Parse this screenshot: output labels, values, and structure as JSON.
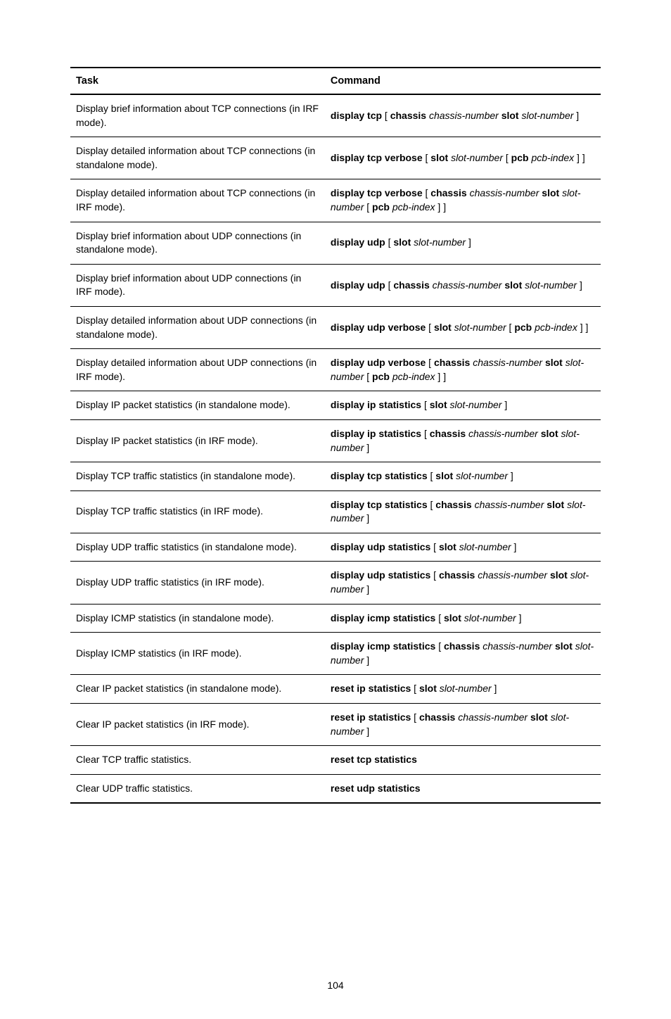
{
  "table": {
    "headers": {
      "task": "Task",
      "command": "Command"
    },
    "rows": [
      {
        "task": "Display brief information about TCP connections (in IRF mode).",
        "command": [
          {
            "t": "display tcp",
            "s": "b"
          },
          {
            "t": " [ ",
            "s": "n"
          },
          {
            "t": "chassis",
            "s": "b"
          },
          {
            "t": " ",
            "s": "n"
          },
          {
            "t": "chassis-number",
            "s": "i"
          },
          {
            "t": " ",
            "s": "n"
          },
          {
            "t": "slot",
            "s": "b"
          },
          {
            "t": " ",
            "s": "n"
          },
          {
            "t": "slot-number",
            "s": "i"
          },
          {
            "t": " ]",
            "s": "n"
          }
        ]
      },
      {
        "task": "Display detailed information about TCP connections (in standalone mode).",
        "command": [
          {
            "t": "display tcp verbose",
            "s": "b"
          },
          {
            "t": " [ ",
            "s": "n"
          },
          {
            "t": "slot",
            "s": "b"
          },
          {
            "t": " ",
            "s": "n"
          },
          {
            "t": "slot-number",
            "s": "i"
          },
          {
            "t": " [ ",
            "s": "n"
          },
          {
            "t": "pcb",
            "s": "b"
          },
          {
            "t": " ",
            "s": "n"
          },
          {
            "t": "pcb-index",
            "s": "i"
          },
          {
            "t": " ] ]",
            "s": "n"
          }
        ]
      },
      {
        "task": "Display detailed information about TCP connections (in IRF mode).",
        "command": [
          {
            "t": "display tcp verbose",
            "s": "b"
          },
          {
            "t": " [ ",
            "s": "n"
          },
          {
            "t": "chassis",
            "s": "b"
          },
          {
            "t": " ",
            "s": "n"
          },
          {
            "t": "chassis-number",
            "s": "i"
          },
          {
            "t": " ",
            "s": "n"
          },
          {
            "t": "slot",
            "s": "b"
          },
          {
            "t": " ",
            "s": "n"
          },
          {
            "t": "slot-number",
            "s": "i"
          },
          {
            "t": " [ ",
            "s": "n"
          },
          {
            "t": "pcb",
            "s": "b"
          },
          {
            "t": " ",
            "s": "n"
          },
          {
            "t": "pcb-index",
            "s": "i"
          },
          {
            "t": " ] ]",
            "s": "n"
          }
        ]
      },
      {
        "task": "Display brief information about UDP connections (in standalone mode).",
        "command": [
          {
            "t": "display udp",
            "s": "b"
          },
          {
            "t": " [ ",
            "s": "n"
          },
          {
            "t": "slot",
            "s": "b"
          },
          {
            "t": " ",
            "s": "n"
          },
          {
            "t": "slot-number",
            "s": "i"
          },
          {
            "t": " ]",
            "s": "n"
          }
        ]
      },
      {
        "task": "Display brief information about UDP connections (in IRF mode).",
        "command": [
          {
            "t": "display udp",
            "s": "b"
          },
          {
            "t": " [ ",
            "s": "n"
          },
          {
            "t": "chassis",
            "s": "b"
          },
          {
            "t": " ",
            "s": "n"
          },
          {
            "t": "chassis-number",
            "s": "i"
          },
          {
            "t": " ",
            "s": "n"
          },
          {
            "t": "slot",
            "s": "b"
          },
          {
            "t": " ",
            "s": "n"
          },
          {
            "t": "slot-number",
            "s": "i"
          },
          {
            "t": " ]",
            "s": "n"
          }
        ]
      },
      {
        "task": "Display detailed information about UDP connections (in standalone mode).",
        "command": [
          {
            "t": "display udp verbose",
            "s": "b"
          },
          {
            "t": " [ ",
            "s": "n"
          },
          {
            "t": "slot",
            "s": "b"
          },
          {
            "t": " ",
            "s": "n"
          },
          {
            "t": "slot-number",
            "s": "i"
          },
          {
            "t": " [ ",
            "s": "n"
          },
          {
            "t": "pcb",
            "s": "b"
          },
          {
            "t": " ",
            "s": "n"
          },
          {
            "t": "pcb-index",
            "s": "i"
          },
          {
            "t": " ] ]",
            "s": "n"
          }
        ]
      },
      {
        "task": "Display detailed information about UDP connections (in IRF mode).",
        "command": [
          {
            "t": "display udp verbose",
            "s": "b"
          },
          {
            "t": " [ ",
            "s": "n"
          },
          {
            "t": "chassis",
            "s": "b"
          },
          {
            "t": " ",
            "s": "n"
          },
          {
            "t": "chassis-number",
            "s": "i"
          },
          {
            "t": " ",
            "s": "n"
          },
          {
            "t": "slot",
            "s": "b"
          },
          {
            "t": " ",
            "s": "n"
          },
          {
            "t": "slot-number",
            "s": "i"
          },
          {
            "t": " [ ",
            "s": "n"
          },
          {
            "t": "pcb",
            "s": "b"
          },
          {
            "t": " ",
            "s": "n"
          },
          {
            "t": "pcb-index",
            "s": "i"
          },
          {
            "t": " ] ]",
            "s": "n"
          }
        ]
      },
      {
        "task": "Display IP packet statistics (in standalone mode).",
        "command": [
          {
            "t": "display ip statistics",
            "s": "b"
          },
          {
            "t": " [ ",
            "s": "n"
          },
          {
            "t": "slot",
            "s": "b"
          },
          {
            "t": " ",
            "s": "n"
          },
          {
            "t": "slot-number",
            "s": "i"
          },
          {
            "t": " ]",
            "s": "n"
          }
        ]
      },
      {
        "task": "Display IP packet statistics (in IRF mode).",
        "command": [
          {
            "t": "display ip statistics",
            "s": "b"
          },
          {
            "t": " [ ",
            "s": "n"
          },
          {
            "t": "chassis",
            "s": "b"
          },
          {
            "t": " ",
            "s": "n"
          },
          {
            "t": "chassis-number",
            "s": "i"
          },
          {
            "t": " ",
            "s": "n"
          },
          {
            "t": "slot",
            "s": "b"
          },
          {
            "t": " ",
            "s": "n"
          },
          {
            "t": "slot-number",
            "s": "i"
          },
          {
            "t": " ]",
            "s": "n"
          }
        ]
      },
      {
        "task": "Display TCP traffic statistics (in standalone mode).",
        "command": [
          {
            "t": "display tcp statistics",
            "s": "b"
          },
          {
            "t": " [ ",
            "s": "n"
          },
          {
            "t": "slot",
            "s": "b"
          },
          {
            "t": " ",
            "s": "n"
          },
          {
            "t": "slot-number",
            "s": "i"
          },
          {
            "t": " ]",
            "s": "n"
          }
        ]
      },
      {
        "task": "Display TCP traffic statistics (in IRF mode).",
        "command": [
          {
            "t": "display tcp statistics",
            "s": "b"
          },
          {
            "t": " [ ",
            "s": "n"
          },
          {
            "t": "chassis",
            "s": "b"
          },
          {
            "t": " ",
            "s": "n"
          },
          {
            "t": "chassis-number",
            "s": "i"
          },
          {
            "t": " ",
            "s": "n"
          },
          {
            "t": "slot",
            "s": "b"
          },
          {
            "t": " ",
            "s": "n"
          },
          {
            "t": "slot-number",
            "s": "i"
          },
          {
            "t": " ]",
            "s": "n"
          }
        ]
      },
      {
        "task": "Display UDP traffic statistics (in standalone mode).",
        "command": [
          {
            "t": "display udp statistics",
            "s": "b"
          },
          {
            "t": " [ ",
            "s": "n"
          },
          {
            "t": "slot",
            "s": "b"
          },
          {
            "t": " ",
            "s": "n"
          },
          {
            "t": "slot-number",
            "s": "i"
          },
          {
            "t": " ]",
            "s": "n"
          }
        ]
      },
      {
        "task": "Display UDP traffic statistics (in IRF mode).",
        "command": [
          {
            "t": "display udp statistics",
            "s": "b"
          },
          {
            "t": " [ ",
            "s": "n"
          },
          {
            "t": "chassis",
            "s": "b"
          },
          {
            "t": " ",
            "s": "n"
          },
          {
            "t": "chassis-number",
            "s": "i"
          },
          {
            "t": " ",
            "s": "n"
          },
          {
            "t": "slot",
            "s": "b"
          },
          {
            "t": " ",
            "s": "n"
          },
          {
            "t": "slot-number",
            "s": "i"
          },
          {
            "t": " ]",
            "s": "n"
          }
        ]
      },
      {
        "task": "Display ICMP statistics (in standalone mode).",
        "command": [
          {
            "t": "display icmp statistics",
            "s": "b"
          },
          {
            "t": " [ ",
            "s": "n"
          },
          {
            "t": "slot",
            "s": "b"
          },
          {
            "t": " ",
            "s": "n"
          },
          {
            "t": "slot-number",
            "s": "i"
          },
          {
            "t": " ]",
            "s": "n"
          }
        ]
      },
      {
        "task": "Display ICMP statistics (in IRF mode).",
        "command": [
          {
            "t": "display icmp statistics",
            "s": "b"
          },
          {
            "t": " [ ",
            "s": "n"
          },
          {
            "t": "chassis",
            "s": "b"
          },
          {
            "t": " ",
            "s": "n"
          },
          {
            "t": "chassis-number",
            "s": "i"
          },
          {
            "t": " ",
            "s": "n"
          },
          {
            "t": "slot",
            "s": "b"
          },
          {
            "t": " ",
            "s": "n"
          },
          {
            "t": "slot-number",
            "s": "i"
          },
          {
            "t": " ]",
            "s": "n"
          }
        ]
      },
      {
        "task": "Clear IP packet statistics (in standalone mode).",
        "command": [
          {
            "t": "reset ip statistics",
            "s": "b"
          },
          {
            "t": " [ ",
            "s": "n"
          },
          {
            "t": "slot",
            "s": "b"
          },
          {
            "t": " ",
            "s": "n"
          },
          {
            "t": "slot-number",
            "s": "i"
          },
          {
            "t": " ]",
            "s": "n"
          }
        ]
      },
      {
        "task": "Clear IP packet statistics (in IRF mode).",
        "command": [
          {
            "t": "reset ip statistics",
            "s": "b"
          },
          {
            "t": " [ ",
            "s": "n"
          },
          {
            "t": "chassis",
            "s": "b"
          },
          {
            "t": " ",
            "s": "n"
          },
          {
            "t": "chassis-number",
            "s": "i"
          },
          {
            "t": " ",
            "s": "n"
          },
          {
            "t": "slot",
            "s": "b"
          },
          {
            "t": " ",
            "s": "n"
          },
          {
            "t": "slot-number",
            "s": "i"
          },
          {
            "t": " ]",
            "s": "n"
          }
        ]
      },
      {
        "task": "Clear TCP traffic statistics.",
        "command": [
          {
            "t": "reset tcp statistics",
            "s": "b"
          }
        ]
      },
      {
        "task": "Clear UDP traffic statistics.",
        "command": [
          {
            "t": "reset udp statistics",
            "s": "b"
          }
        ]
      }
    ]
  },
  "page_number": "104"
}
